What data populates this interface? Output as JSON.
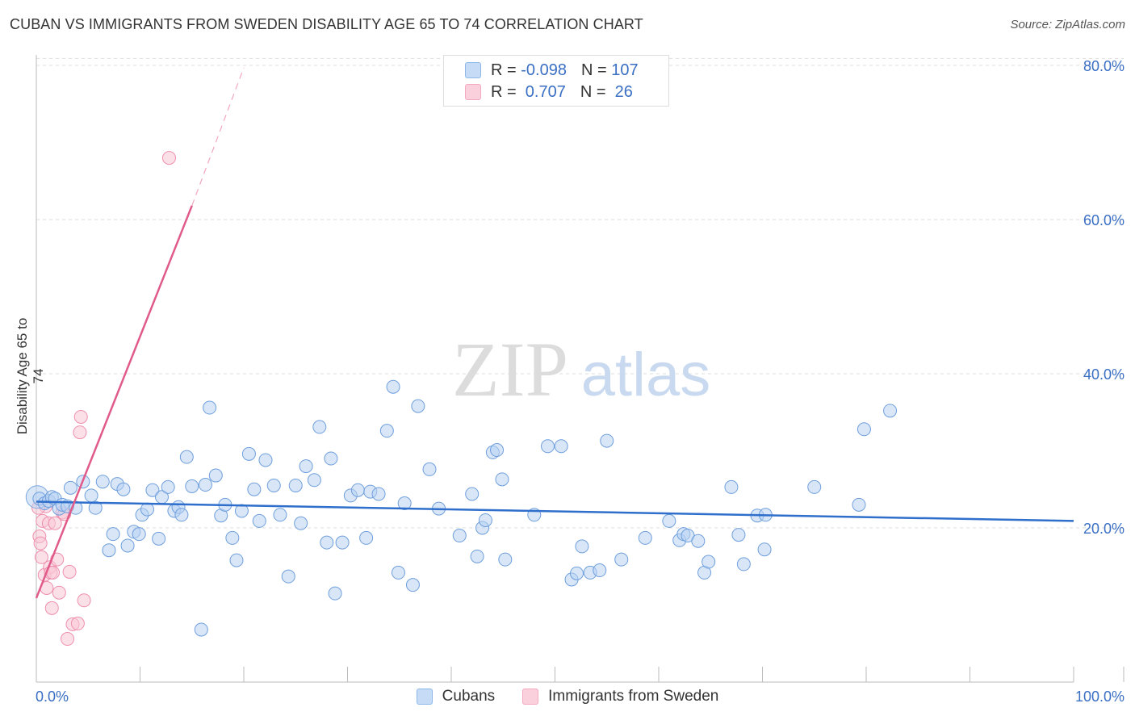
{
  "title": "CUBAN VS IMMIGRANTS FROM SWEDEN DISABILITY AGE 65 TO 74 CORRELATION CHART",
  "source": "Source: ZipAtlas.com",
  "watermark": {
    "zip": "ZIP",
    "atlas": "atlas"
  },
  "legend_top": {
    "rows": [
      {
        "r_label": "R =",
        "r_value": "-0.098",
        "n_label": "N =",
        "n_value": "107"
      },
      {
        "r_label": "R =",
        "r_value": " 0.707",
        "n_label": "N =",
        "n_value": " 26"
      }
    ]
  },
  "colors": {
    "cubans": "#8fb8ea",
    "sweden": "#f4a9c0",
    "cubans_line": "#2f6fcb",
    "sweden_line": "#e05a8a",
    "tick_label": "#3a6fc4"
  },
  "chart_data": {
    "type": "scatter",
    "title": "CUBAN VS IMMIGRANTS FROM SWEDEN DISABILITY AGE 65 TO 74 CORRELATION CHART",
    "xlabel": "",
    "ylabel": "Disability Age 65 to 74",
    "xlim": [
      0,
      100
    ],
    "ylim": [
      0,
      85
    ],
    "x_tick_labels": [
      "0.0%",
      "100.0%"
    ],
    "y_ticks": [
      20,
      40,
      60,
      80
    ],
    "y_tick_labels": [
      "20.0%",
      "40.0%",
      "60.0%",
      "80.0%"
    ],
    "grid": true,
    "series": [
      {
        "name": "Cubans",
        "color": "#8fb8ea",
        "trend": {
          "x0": 0,
          "y0": 23.4,
          "x1": 100,
          "y1": 20.9
        },
        "points": [
          [
            0.3,
            23.8
          ],
          [
            0.8,
            23.2
          ],
          [
            1.2,
            23.5
          ],
          [
            1.5,
            24.0
          ],
          [
            1.8,
            23.8
          ],
          [
            2.2,
            22.5
          ],
          [
            2.5,
            23.0
          ],
          [
            3.0,
            22.8
          ],
          [
            3.3,
            25.2
          ],
          [
            3.8,
            22.6
          ],
          [
            4.5,
            26.0
          ],
          [
            5.3,
            24.2
          ],
          [
            5.7,
            22.6
          ],
          [
            6.4,
            26.0
          ],
          [
            7.0,
            17.1
          ],
          [
            7.4,
            19.2
          ],
          [
            7.8,
            25.7
          ],
          [
            8.4,
            25.0
          ],
          [
            8.8,
            17.7
          ],
          [
            9.4,
            19.5
          ],
          [
            9.9,
            19.2
          ],
          [
            10.2,
            21.7
          ],
          [
            10.7,
            22.4
          ],
          [
            11.2,
            24.9
          ],
          [
            11.8,
            18.6
          ],
          [
            12.1,
            24.0
          ],
          [
            12.7,
            25.3
          ],
          [
            13.3,
            22.2
          ],
          [
            13.7,
            22.7
          ],
          [
            14.0,
            21.7
          ],
          [
            14.5,
            29.2
          ],
          [
            15.0,
            25.4
          ],
          [
            15.9,
            6.8
          ],
          [
            16.3,
            25.6
          ],
          [
            16.7,
            35.6
          ],
          [
            17.3,
            26.8
          ],
          [
            17.8,
            21.6
          ],
          [
            18.2,
            23.0
          ],
          [
            18.9,
            18.7
          ],
          [
            19.3,
            15.8
          ],
          [
            19.8,
            22.2
          ],
          [
            20.5,
            29.6
          ],
          [
            21.0,
            25.0
          ],
          [
            21.5,
            20.9
          ],
          [
            22.1,
            28.8
          ],
          [
            22.9,
            25.5
          ],
          [
            23.5,
            21.7
          ],
          [
            24.3,
            13.7
          ],
          [
            25.0,
            25.5
          ],
          [
            25.5,
            20.6
          ],
          [
            26.0,
            28.0
          ],
          [
            26.8,
            26.2
          ],
          [
            27.3,
            33.1
          ],
          [
            28.0,
            18.1
          ],
          [
            28.4,
            29.0
          ],
          [
            28.8,
            11.5
          ],
          [
            29.5,
            18.1
          ],
          [
            30.3,
            24.2
          ],
          [
            31.0,
            24.9
          ],
          [
            31.8,
            18.7
          ],
          [
            32.2,
            24.7
          ],
          [
            33.0,
            24.4
          ],
          [
            33.8,
            32.6
          ],
          [
            34.4,
            38.3
          ],
          [
            34.9,
            14.2
          ],
          [
            35.5,
            23.2
          ],
          [
            36.3,
            12.6
          ],
          [
            36.8,
            35.8
          ],
          [
            37.9,
            27.6
          ],
          [
            38.8,
            22.5
          ],
          [
            40.8,
            19.0
          ],
          [
            42.0,
            24.4
          ],
          [
            42.5,
            16.3
          ],
          [
            43.0,
            20.0
          ],
          [
            43.3,
            21.0
          ],
          [
            44.0,
            29.8
          ],
          [
            44.4,
            30.1
          ],
          [
            44.9,
            26.3
          ],
          [
            45.2,
            15.9
          ],
          [
            48.0,
            21.7
          ],
          [
            49.3,
            30.6
          ],
          [
            50.6,
            30.6
          ],
          [
            51.6,
            13.3
          ],
          [
            52.1,
            14.1
          ],
          [
            52.6,
            17.6
          ],
          [
            53.4,
            14.2
          ],
          [
            54.3,
            14.5
          ],
          [
            55.0,
            31.3
          ],
          [
            56.4,
            15.9
          ],
          [
            58.7,
            18.7
          ],
          [
            61.0,
            20.9
          ],
          [
            62.0,
            18.4
          ],
          [
            62.4,
            19.2
          ],
          [
            62.8,
            19.0
          ],
          [
            63.8,
            18.3
          ],
          [
            64.4,
            14.2
          ],
          [
            64.8,
            15.6
          ],
          [
            67.0,
            25.3
          ],
          [
            67.7,
            19.1
          ],
          [
            68.2,
            15.3
          ],
          [
            69.5,
            21.6
          ],
          [
            70.2,
            17.2
          ],
          [
            70.3,
            21.7
          ],
          [
            75.0,
            25.3
          ],
          [
            79.3,
            23.0
          ],
          [
            79.8,
            32.8
          ],
          [
            82.3,
            35.2
          ]
        ]
      },
      {
        "name": "Immigrants from Sweden",
        "color": "#f4a9c0",
        "trend": {
          "x0": 0,
          "y0": 10.9,
          "x1": 15,
          "y1": 61.8,
          "dash_to_x": 20,
          "dash_to_y": 79.7
        },
        "points": [
          [
            0.3,
            18.9
          ],
          [
            0.4,
            18.0
          ],
          [
            0.5,
            16.2
          ],
          [
            0.6,
            20.9
          ],
          [
            0.8,
            13.9
          ],
          [
            0.9,
            22.8
          ],
          [
            1.0,
            12.2
          ],
          [
            1.2,
            20.6
          ],
          [
            1.3,
            14.9
          ],
          [
            1.4,
            14.2
          ],
          [
            1.5,
            9.6
          ],
          [
            1.6,
            14.2
          ],
          [
            1.8,
            20.6
          ],
          [
            2.0,
            15.9
          ],
          [
            2.2,
            11.6
          ],
          [
            2.5,
            22.0
          ],
          [
            2.7,
            21.8
          ],
          [
            3.0,
            5.6
          ],
          [
            3.2,
            14.3
          ],
          [
            3.5,
            7.5
          ],
          [
            4.0,
            7.6
          ],
          [
            4.2,
            32.4
          ],
          [
            4.3,
            34.4
          ],
          [
            4.6,
            10.6
          ],
          [
            12.8,
            68.0
          ],
          [
            0.2,
            22.6
          ]
        ]
      }
    ]
  },
  "bottom_legend": {
    "cubans": "Cubans",
    "sweden": "Immigrants from Sweden"
  }
}
